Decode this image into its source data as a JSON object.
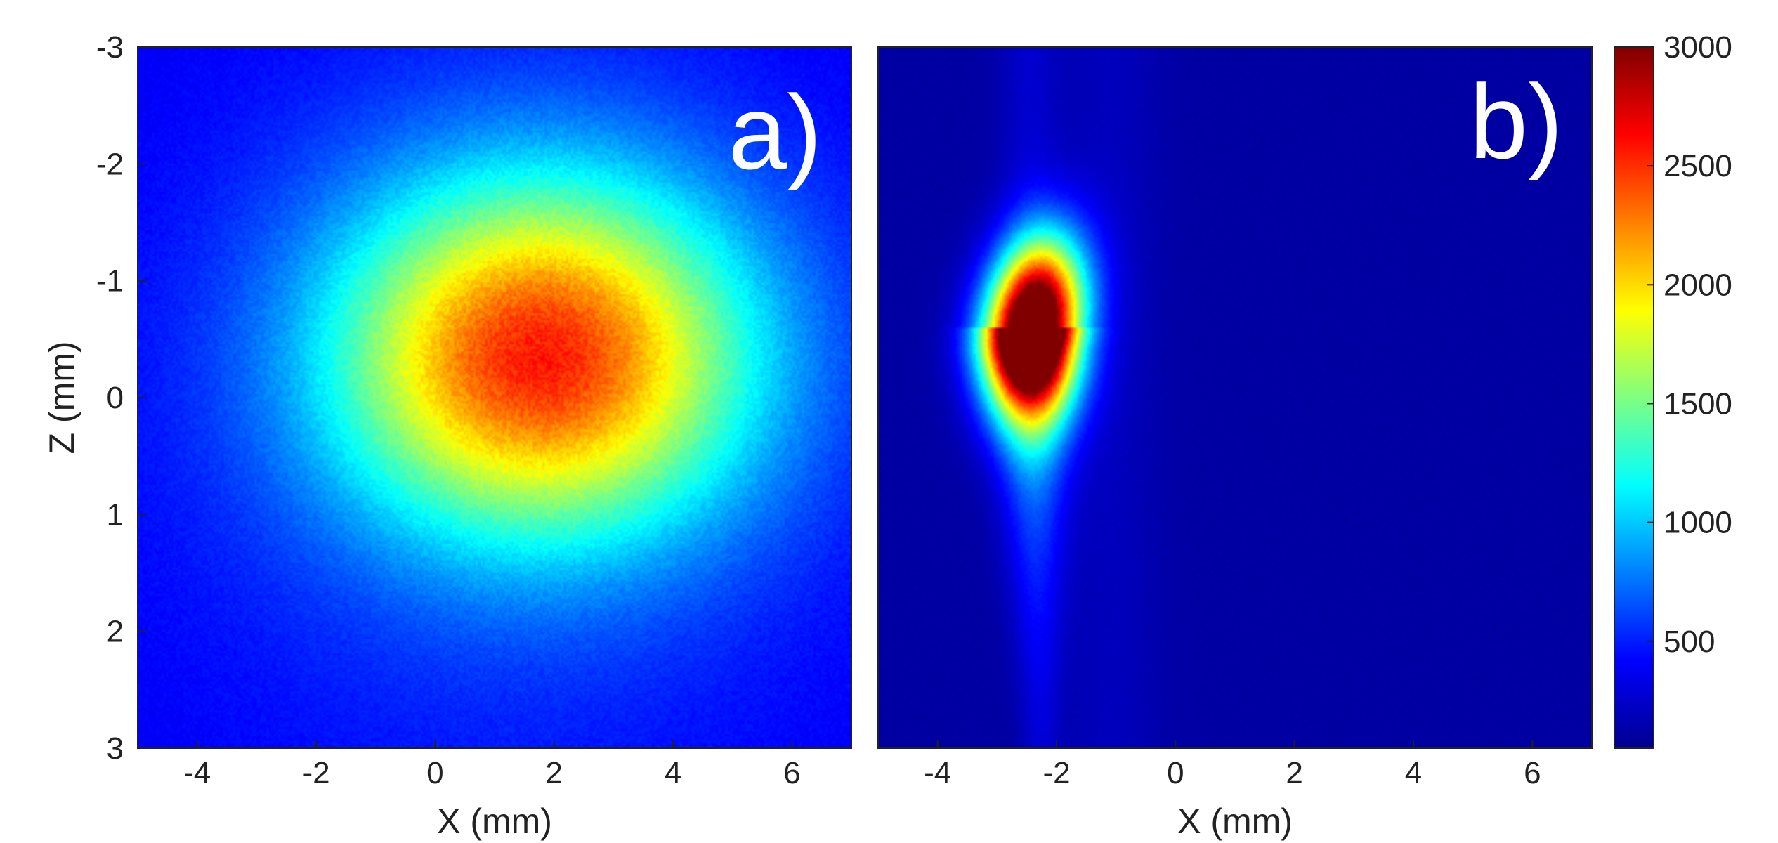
{
  "chart_data": [
    {
      "type": "heatmap",
      "panel_label": "a)",
      "xlabel": "X (mm)",
      "ylabel": "Z (mm)",
      "xlim": [
        -5,
        7
      ],
      "ylim": [
        3,
        -3
      ],
      "x_ticks": [
        -4,
        -2,
        0,
        2,
        4,
        6
      ],
      "x_tick_labels": [
        "-4",
        "-2",
        "0",
        "2",
        "4",
        "6"
      ],
      "y_ticks": [
        -3,
        -2,
        -1,
        0,
        1,
        2,
        3
      ],
      "y_tick_labels": [
        "-3",
        "-2",
        "-1",
        "0",
        "1",
        "2",
        "3"
      ],
      "description_of_field": {
        "shape": "elliptical gaussian blob",
        "peak_center_x_mm": 1.8,
        "peak_center_z_mm": -0.35,
        "sigma_x_mm": 2.4,
        "sigma_z_mm": 1.05,
        "peak_value": 2500,
        "background_value": 500
      }
    },
    {
      "type": "heatmap",
      "panel_label": "b)",
      "xlabel": "X (mm)",
      "ylabel": "",
      "xlim": [
        -5,
        7
      ],
      "ylim": [
        3,
        -3
      ],
      "x_ticks": [
        -4,
        -2,
        0,
        2,
        4,
        6
      ],
      "x_tick_labels": [
        "-4",
        "-2",
        "0",
        "2",
        "4",
        "6"
      ],
      "description_of_field": {
        "shape": "narrow elongated plume with bright head",
        "head_center_x_mm": -2.45,
        "head_center_z_mm": -0.6,
        "head_peak_value": 3000,
        "tail_direction": "toward positive Z along X ≈ -2.3",
        "background_value": 150
      }
    }
  ],
  "colorbar": {
    "colormap": "jet",
    "min": 50,
    "max": 3000,
    "ticks": [
      500,
      1000,
      1500,
      2000,
      2500,
      3000
    ],
    "tick_labels": [
      "500",
      "1000",
      "1500",
      "2000",
      "2500",
      "3000"
    ]
  }
}
